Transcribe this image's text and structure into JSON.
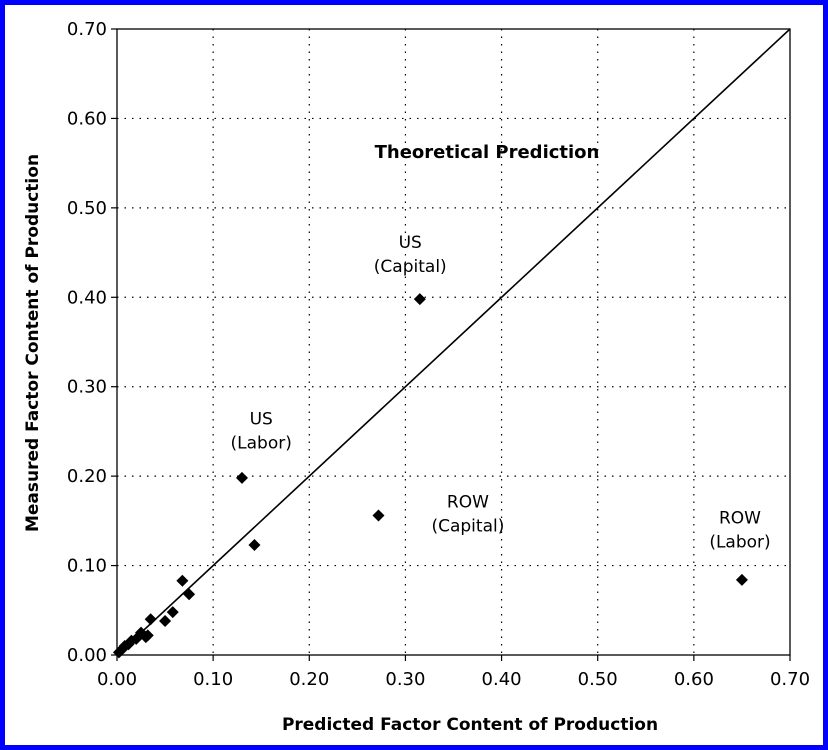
{
  "chart_data": {
    "type": "scatter",
    "xlabel": "Predicted Factor Content of Production",
    "ylabel": "Measured Factor Content of Production",
    "xlim": [
      0,
      0.7
    ],
    "ylim": [
      0,
      0.7
    ],
    "x_ticks": [
      "0.00",
      "0.10",
      "0.20",
      "0.30",
      "0.40",
      "0.50",
      "0.60",
      "0.70"
    ],
    "y_ticks": [
      "0.00",
      "0.10",
      "0.20",
      "0.30",
      "0.40",
      "0.50",
      "0.60",
      "0.70"
    ],
    "grid": "dotted",
    "reference_line": {
      "label": "Theoretical Prediction",
      "from": [
        0,
        0
      ],
      "to": [
        0.7,
        0.7
      ]
    },
    "points": [
      {
        "x": 0.002,
        "y": 0.003
      },
      {
        "x": 0.005,
        "y": 0.006
      },
      {
        "x": 0.008,
        "y": 0.01
      },
      {
        "x": 0.012,
        "y": 0.012
      },
      {
        "x": 0.015,
        "y": 0.016
      },
      {
        "x": 0.02,
        "y": 0.018
      },
      {
        "x": 0.025,
        "y": 0.025
      },
      {
        "x": 0.03,
        "y": 0.02
      },
      {
        "x": 0.032,
        "y": 0.022
      },
      {
        "x": 0.035,
        "y": 0.04
      },
      {
        "x": 0.05,
        "y": 0.038
      },
      {
        "x": 0.058,
        "y": 0.048
      },
      {
        "x": 0.068,
        "y": 0.083
      },
      {
        "x": 0.075,
        "y": 0.068
      },
      {
        "x": 0.13,
        "y": 0.198
      },
      {
        "x": 0.143,
        "y": 0.123
      },
      {
        "x": 0.272,
        "y": 0.156
      },
      {
        "x": 0.315,
        "y": 0.398
      },
      {
        "x": 0.65,
        "y": 0.084
      }
    ],
    "annotations": [
      {
        "lines": [
          "US",
          "(Capital)"
        ],
        "x": 0.305,
        "y": 0.455
      },
      {
        "lines": [
          "US",
          "(Labor)"
        ],
        "x": 0.15,
        "y": 0.258
      },
      {
        "lines": [
          "ROW",
          "(Capital)"
        ],
        "x": 0.365,
        "y": 0.165
      },
      {
        "lines": [
          "ROW",
          "(Labor)"
        ],
        "x": 0.648,
        "y": 0.147
      }
    ]
  }
}
